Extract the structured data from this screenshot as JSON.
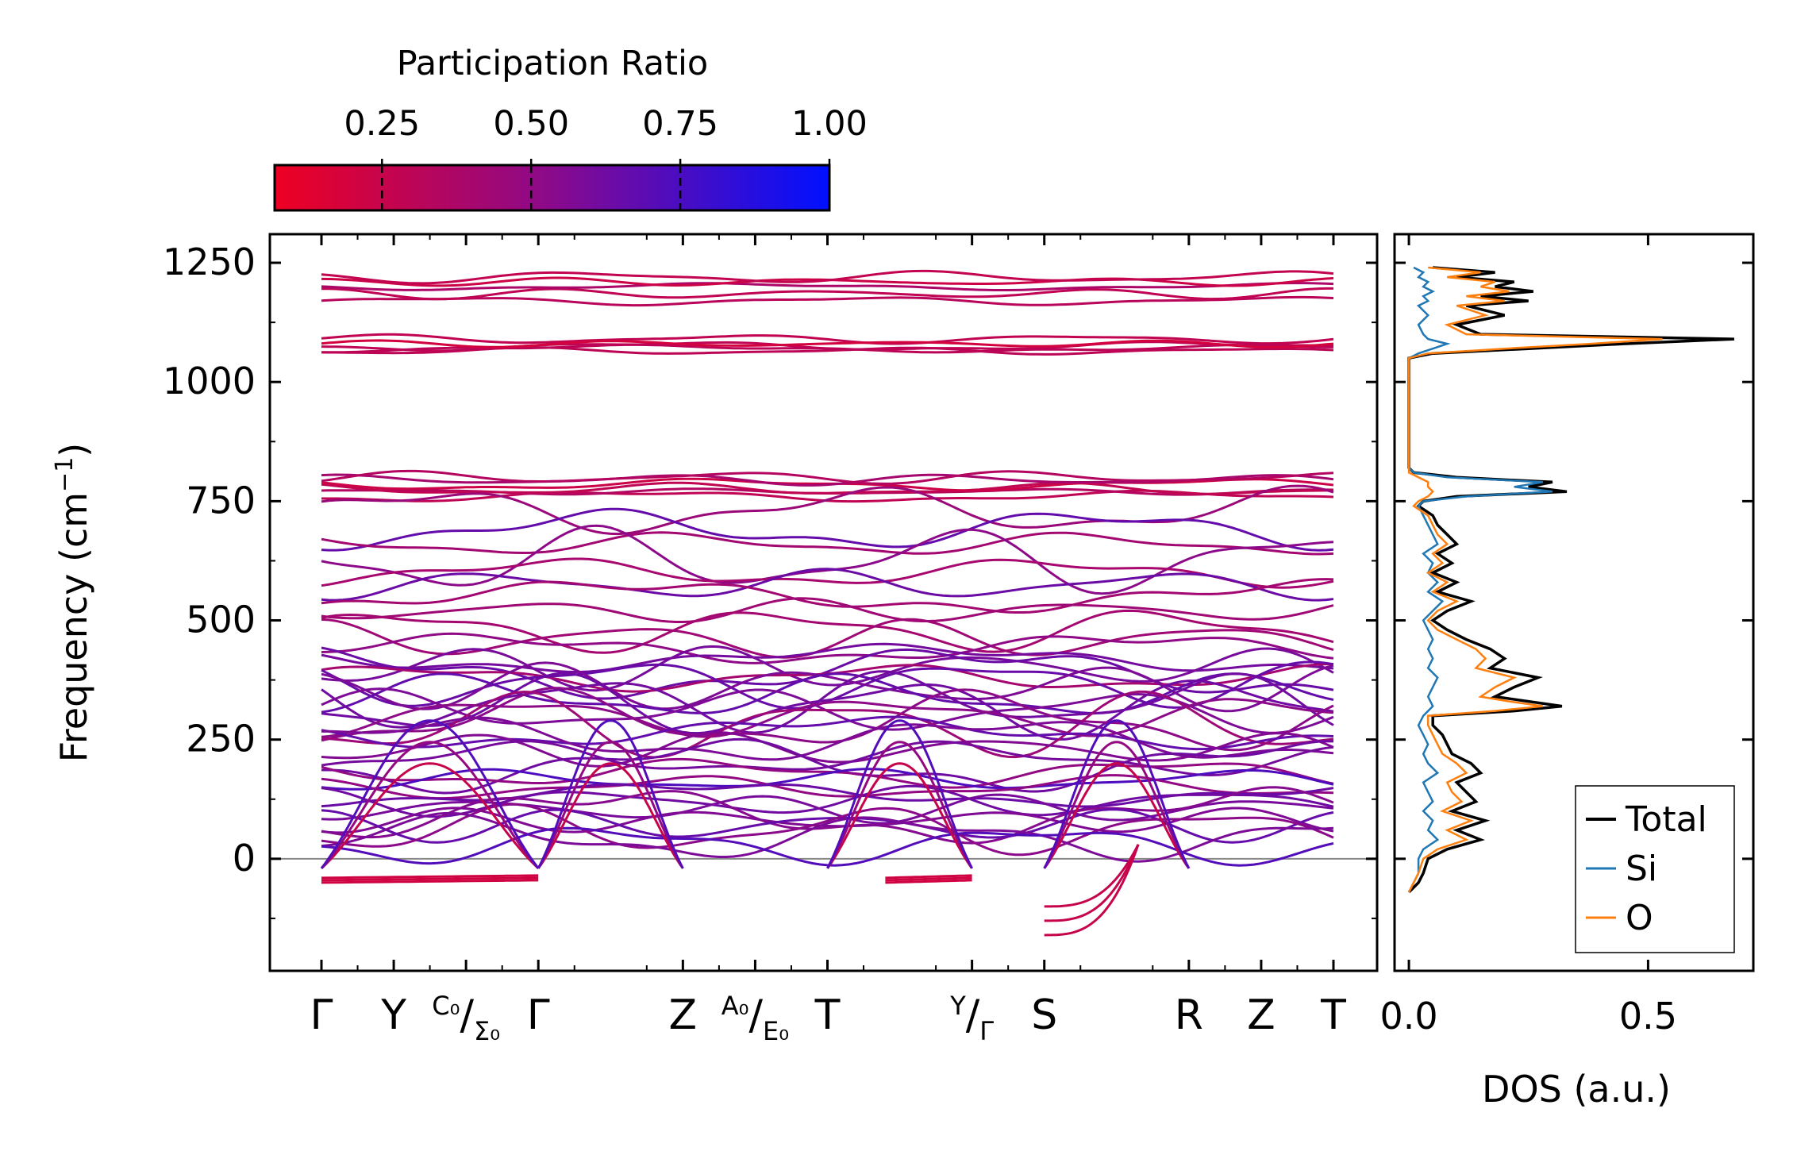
{
  "colorbar": {
    "title": "Participation Ratio",
    "ticks": [
      "0.25",
      "0.50",
      "0.75",
      "1.00"
    ],
    "tick_values": [
      0.25,
      0.5,
      0.75,
      1.0
    ],
    "range": [
      0.07,
      1.0
    ],
    "low_color": "#ee0022",
    "mid_color": "#8a0a8c",
    "high_color": "#0010ff"
  },
  "chart_data": [
    {
      "type": "line",
      "title": "",
      "ylabel": "Frequency (cm",
      "ylabel_sup": "−1",
      "ylabel_close": ")",
      "ylim": [
        -235,
        1310
      ],
      "yticks": [
        "0",
        "250",
        "500",
        "750",
        "1000",
        "1250"
      ],
      "ytick_values": [
        0,
        250,
        500,
        750,
        1000,
        1250
      ],
      "xlim": [
        0,
        14
      ],
      "kpoints": [
        {
          "x": 0,
          "label": "Γ"
        },
        {
          "x": 1,
          "label": "Y"
        },
        {
          "x": 2,
          "label_sup": "C₀",
          "label": "/",
          "label_sub": "Σ₀"
        },
        {
          "x": 3,
          "label": "Γ"
        },
        {
          "x": 5,
          "label": "Z"
        },
        {
          "x": 6,
          "label_sup": "A₀",
          "label": "/",
          "label_sub": "E₀"
        },
        {
          "x": 7,
          "label": "T"
        },
        {
          "x": 9,
          "label_sup": "Y",
          "label": "/",
          "label_sub": "Γ"
        },
        {
          "x": 10,
          "label": "S"
        },
        {
          "x": 12,
          "label": "R"
        },
        {
          "x": 13,
          "label": "Z"
        },
        {
          "x": 14,
          "label": "T"
        }
      ],
      "zero_line": 0,
      "bands": {
        "flat_high": [
          1075,
          1090,
          1070,
          1065,
          1080,
          1170,
          1185,
          1200,
          1210,
          1220,
          760,
          770,
          775,
          785,
          795,
          800
        ],
        "mid": [
          730,
          690,
          660,
          625,
          600,
          575,
          550,
          520,
          480,
          460,
          440,
          420,
          400,
          390,
          380,
          370,
          360,
          340,
          330,
          320,
          310,
          300,
          290,
          280,
          265,
          250,
          230
        ],
        "low": [
          210,
          195,
          180,
          165,
          150,
          135,
          120,
          105,
          90,
          80,
          70,
          60,
          45,
          30
        ],
        "imaginary": [
          -40,
          -45,
          -50,
          -100,
          -130,
          -160
        ]
      }
    },
    {
      "type": "line",
      "xlabel": "DOS (a.u.)",
      "xlim": [
        -0.03,
        0.72
      ],
      "xticks": [
        "0.0",
        "0.5"
      ],
      "xtick_values": [
        0.0,
        0.5
      ],
      "ylim": [
        -235,
        1310
      ],
      "legend_position": "lower-right",
      "series": [
        {
          "name": "Total",
          "color": "#000000",
          "freq": [
            -70,
            -50,
            -30,
            0,
            20,
            40,
            60,
            80,
            100,
            120,
            140,
            160,
            180,
            200,
            220,
            240,
            260,
            280,
            300,
            310,
            320,
            330,
            340,
            360,
            380,
            400,
            420,
            440,
            460,
            480,
            500,
            520,
            540,
            560,
            580,
            600,
            620,
            640,
            660,
            680,
            700,
            720,
            740,
            750,
            760,
            770,
            780,
            790,
            800,
            810,
            820,
            850,
            900,
            950,
            1000,
            1050,
            1060,
            1070,
            1080,
            1090,
            1100,
            1120,
            1140,
            1160,
            1170,
            1180,
            1190,
            1200,
            1210,
            1220,
            1230,
            1240
          ],
          "values": [
            0.0,
            0.02,
            0.03,
            0.04,
            0.08,
            0.15,
            0.1,
            0.16,
            0.09,
            0.14,
            0.12,
            0.1,
            0.15,
            0.13,
            0.09,
            0.08,
            0.07,
            0.05,
            0.05,
            0.22,
            0.32,
            0.25,
            0.18,
            0.22,
            0.27,
            0.17,
            0.2,
            0.17,
            0.12,
            0.08,
            0.05,
            0.08,
            0.13,
            0.06,
            0.1,
            0.05,
            0.09,
            0.06,
            0.1,
            0.08,
            0.06,
            0.05,
            0.02,
            0.03,
            0.1,
            0.33,
            0.25,
            0.3,
            0.1,
            0.01,
            0.0,
            0.0,
            0.0,
            0.0,
            0.0,
            0.0,
            0.05,
            0.25,
            0.45,
            0.68,
            0.15,
            0.1,
            0.2,
            0.12,
            0.25,
            0.15,
            0.26,
            0.18,
            0.22,
            0.1,
            0.18,
            0.05
          ]
        },
        {
          "name": "Si",
          "color": "#1f77b4",
          "freq": [
            -70,
            -50,
            -30,
            0,
            20,
            40,
            60,
            80,
            100,
            120,
            140,
            160,
            180,
            200,
            220,
            240,
            260,
            280,
            300,
            320,
            340,
            360,
            380,
            400,
            420,
            440,
            460,
            480,
            500,
            520,
            540,
            560,
            580,
            600,
            620,
            640,
            660,
            680,
            700,
            720,
            740,
            750,
            760,
            770,
            780,
            790,
            800,
            810,
            820,
            850,
            900,
            950,
            1000,
            1050,
            1060,
            1070,
            1080,
            1090,
            1100,
            1120,
            1140,
            1160,
            1170,
            1180,
            1190,
            1200,
            1210,
            1220,
            1230,
            1240
          ],
          "values": [
            0.0,
            0.01,
            0.02,
            0.02,
            0.03,
            0.06,
            0.04,
            0.05,
            0.03,
            0.05,
            0.04,
            0.03,
            0.06,
            0.04,
            0.03,
            0.04,
            0.03,
            0.02,
            0.03,
            0.05,
            0.04,
            0.05,
            0.06,
            0.04,
            0.05,
            0.04,
            0.05,
            0.04,
            0.03,
            0.05,
            0.07,
            0.04,
            0.06,
            0.04,
            0.05,
            0.03,
            0.06,
            0.05,
            0.04,
            0.03,
            0.02,
            0.03,
            0.12,
            0.3,
            0.22,
            0.28,
            0.08,
            0.01,
            0.0,
            0.0,
            0.0,
            0.0,
            0.0,
            0.0,
            0.02,
            0.05,
            0.08,
            0.04,
            0.03,
            0.02,
            0.04,
            0.02,
            0.04,
            0.03,
            0.05,
            0.03,
            0.04,
            0.02,
            0.03,
            0.01
          ]
        },
        {
          "name": "O",
          "color": "#ff7f0e",
          "freq": [
            -70,
            -50,
            -30,
            0,
            20,
            40,
            60,
            80,
            100,
            120,
            140,
            160,
            180,
            200,
            220,
            240,
            260,
            280,
            300,
            310,
            320,
            330,
            340,
            360,
            380,
            400,
            420,
            440,
            460,
            480,
            500,
            520,
            540,
            560,
            580,
            600,
            620,
            640,
            660,
            680,
            700,
            720,
            740,
            750,
            760,
            770,
            780,
            790,
            800,
            810,
            820,
            850,
            900,
            950,
            1000,
            1050,
            1060,
            1070,
            1080,
            1090,
            1100,
            1120,
            1140,
            1160,
            1170,
            1180,
            1190,
            1200,
            1210,
            1220,
            1230,
            1240
          ],
          "values": [
            0.0,
            0.01,
            0.02,
            0.03,
            0.06,
            0.12,
            0.08,
            0.13,
            0.07,
            0.11,
            0.09,
            0.08,
            0.12,
            0.1,
            0.07,
            0.06,
            0.05,
            0.04,
            0.04,
            0.18,
            0.28,
            0.21,
            0.15,
            0.18,
            0.22,
            0.14,
            0.16,
            0.14,
            0.1,
            0.06,
            0.04,
            0.06,
            0.1,
            0.05,
            0.08,
            0.04,
            0.07,
            0.05,
            0.08,
            0.06,
            0.05,
            0.04,
            0.01,
            0.02,
            0.04,
            0.05,
            0.04,
            0.04,
            0.02,
            0.0,
            0.0,
            0.0,
            0.0,
            0.0,
            0.0,
            0.0,
            0.04,
            0.2,
            0.38,
            0.53,
            0.12,
            0.08,
            0.16,
            0.1,
            0.2,
            0.12,
            0.21,
            0.15,
            0.18,
            0.08,
            0.15,
            0.04
          ]
        }
      ]
    }
  ]
}
